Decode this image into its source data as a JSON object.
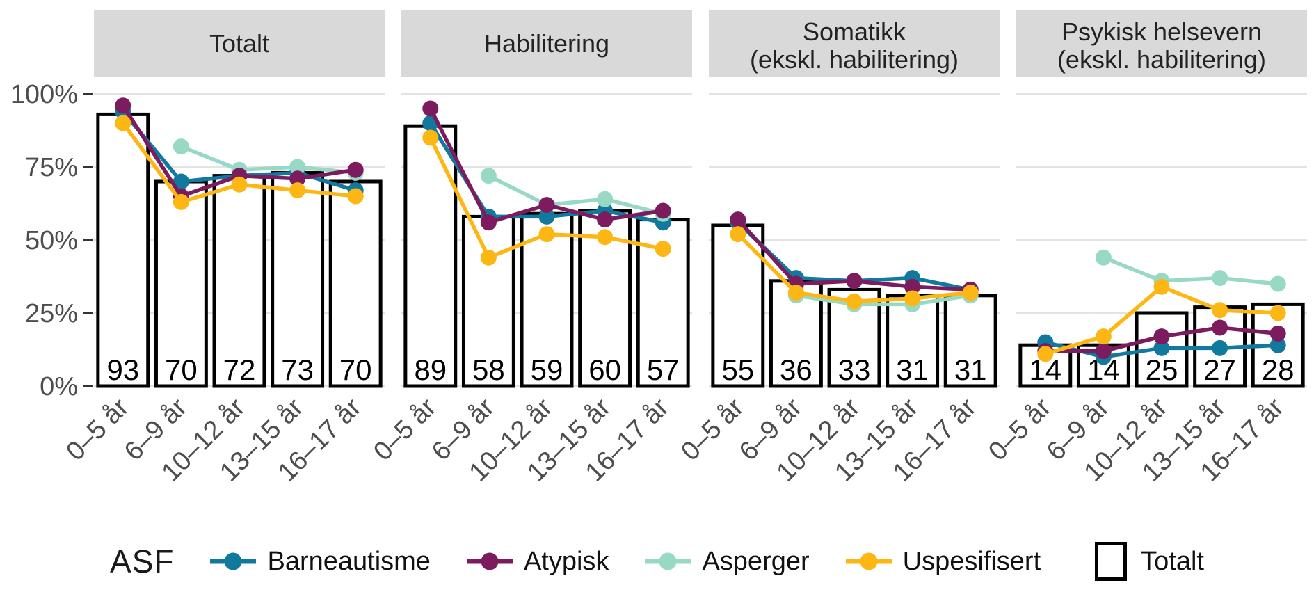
{
  "colors": {
    "barneautisme": "#11799e",
    "atypisk": "#7c1b5e",
    "asperger": "#98d9c5",
    "uspesifisert": "#fdb714",
    "bar_fill": "#ffffff",
    "bar_stroke": "#000000",
    "strip_bg": "#d9d9d9",
    "grid": "#e3e3e3",
    "axis_text": "#4d4d4d",
    "strip_text": "#222222",
    "tick_mark": "#333333"
  },
  "y_axis": {
    "tick_values": [
      100,
      75,
      50,
      25,
      0
    ],
    "tick_labels": [
      "100%",
      "75%",
      "50%",
      "25%",
      "0%"
    ]
  },
  "x_axis": {
    "categories": [
      "0–5 år",
      "6–9 år",
      "10–12 år",
      "13–15 år",
      "16–17 år"
    ]
  },
  "legend": {
    "title": "ASF",
    "entries": [
      {
        "label": "Barneautisme",
        "color_key": "barneautisme"
      },
      {
        "label": "Atypisk",
        "color_key": "atypisk"
      },
      {
        "label": "Asperger",
        "color_key": "asperger"
      },
      {
        "label": "Uspesifisert",
        "color_key": "uspesifisert"
      }
    ],
    "total": {
      "label": "Totalt"
    }
  },
  "chart_data": {
    "type": "bar+line",
    "categories": [
      "0–5 år",
      "6–9 år",
      "10–12 år",
      "13–15 år",
      "16–17 år"
    ],
    "ylim": [
      0,
      100
    ],
    "y_ticks": [
      0,
      25,
      50,
      75,
      100
    ],
    "y_unit": "%",
    "grid": "horizontal",
    "legend_position": "bottom",
    "bar_series_name": "Totalt",
    "draw_order": [
      "Barneautisme",
      "Asperger",
      "Atypisk",
      "Uspesifisert"
    ],
    "series_color_keys": {
      "Barneautisme": "barneautisme",
      "Atypisk": "atypisk",
      "Asperger": "asperger",
      "Uspesifisert": "uspesifisert"
    },
    "facets": [
      {
        "title": "Totalt",
        "title_lines": [
          "Totalt"
        ],
        "bars": [
          93,
          70,
          72,
          73,
          70
        ],
        "series": [
          {
            "name": "Barneautisme",
            "values": [
              94,
              70,
              72,
              73,
              67
            ]
          },
          {
            "name": "Atypisk",
            "values": [
              96,
              65,
              72,
              71,
              74
            ]
          },
          {
            "name": "Asperger",
            "values": [
              null,
              82,
              74,
              75,
              73
            ]
          },
          {
            "name": "Uspesifisert",
            "values": [
              90,
              63,
              69,
              67,
              65
            ]
          }
        ]
      },
      {
        "title": "Habilitering",
        "title_lines": [
          "Habilitering"
        ],
        "bars": [
          89,
          58,
          59,
          60,
          57
        ],
        "series": [
          {
            "name": "Barneautisme",
            "values": [
              90,
              58,
              58,
              60,
              56
            ]
          },
          {
            "name": "Atypisk",
            "values": [
              95,
              56,
              62,
              57,
              60
            ]
          },
          {
            "name": "Asperger",
            "values": [
              null,
              72,
              62,
              64,
              59
            ]
          },
          {
            "name": "Uspesifisert",
            "values": [
              85,
              44,
              52,
              51,
              47
            ]
          }
        ]
      },
      {
        "title": "Somatikk (ekskl. habilitering)",
        "title_lines": [
          "Somatikk",
          "(ekskl. habilitering)"
        ],
        "bars": [
          55,
          36,
          33,
          31,
          31
        ],
        "series": [
          {
            "name": "Barneautisme",
            "values": [
              56,
              37,
              36,
              37,
              33
            ]
          },
          {
            "name": "Atypisk",
            "values": [
              57,
              35,
              36,
              34,
              33
            ]
          },
          {
            "name": "Asperger",
            "values": [
              null,
              31,
              28,
              28,
              31
            ]
          },
          {
            "name": "Uspesifisert",
            "values": [
              52,
              32,
              29,
              30,
              32
            ]
          }
        ]
      },
      {
        "title": "Psykisk helsevern (ekskl. habilitering)",
        "title_lines": [
          "Psykisk helsevern",
          "(ekskl. habilitering)"
        ],
        "bars": [
          14,
          14,
          25,
          27,
          28
        ],
        "series": [
          {
            "name": "Barneautisme",
            "values": [
              15,
              10,
              13,
              13,
              14
            ]
          },
          {
            "name": "Atypisk",
            "values": [
              12,
              12,
              17,
              20,
              18
            ]
          },
          {
            "name": "Asperger",
            "values": [
              null,
              44,
              36,
              37,
              35
            ]
          },
          {
            "name": "Uspesifisert",
            "values": [
              11,
              17,
              34,
              26,
              25
            ]
          }
        ]
      }
    ]
  }
}
